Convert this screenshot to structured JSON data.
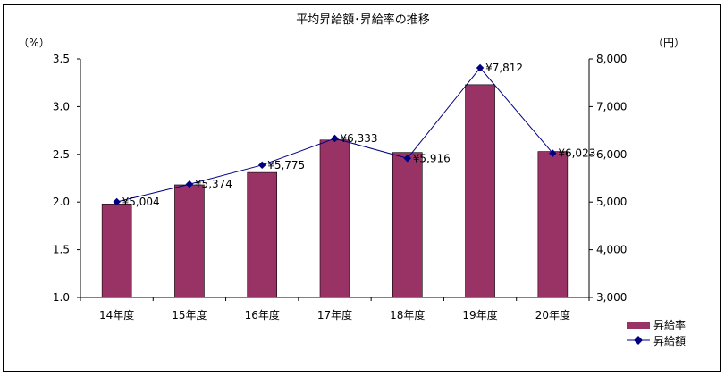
{
  "chart_data": {
    "type": "bar+line",
    "title": "平均昇給額･昇給率の推移",
    "left_axis_unit": "（%）",
    "right_axis_unit": "（円）",
    "categories": [
      "14年度",
      "15年度",
      "16年度",
      "17年度",
      "18年度",
      "19年度",
      "20年度"
    ],
    "left_axis": {
      "min": 1.0,
      "max": 3.5,
      "ticks": [
        1.0,
        1.5,
        2.0,
        2.5,
        3.0,
        3.5
      ],
      "tick_labels": [
        "1.0",
        "1.5",
        "2.0",
        "2.5",
        "3.0",
        "3.5"
      ]
    },
    "right_axis": {
      "min": 3000,
      "max": 8000,
      "ticks": [
        3000,
        4000,
        5000,
        6000,
        7000,
        8000
      ],
      "tick_labels": [
        "3,000",
        "4,000",
        "5,000",
        "6,000",
        "7,000",
        "8,000"
      ]
    },
    "series": [
      {
        "name": "昇給率",
        "type": "bar",
        "axis": "left",
        "color": "#993366",
        "values": [
          1.98,
          2.18,
          2.31,
          2.65,
          2.52,
          3.23,
          2.53
        ]
      },
      {
        "name": "昇給額",
        "type": "line",
        "axis": "right",
        "color": "#000080",
        "values": [
          5004,
          5374,
          5775,
          6333,
          5916,
          7812,
          6023
        ],
        "data_labels": [
          "¥5,004",
          "¥5,374",
          "¥5,775",
          "¥6,333",
          "¥5,916",
          "¥7,812",
          "¥6,023"
        ]
      }
    ],
    "grid": false,
    "legend_position": "bottom-right"
  }
}
